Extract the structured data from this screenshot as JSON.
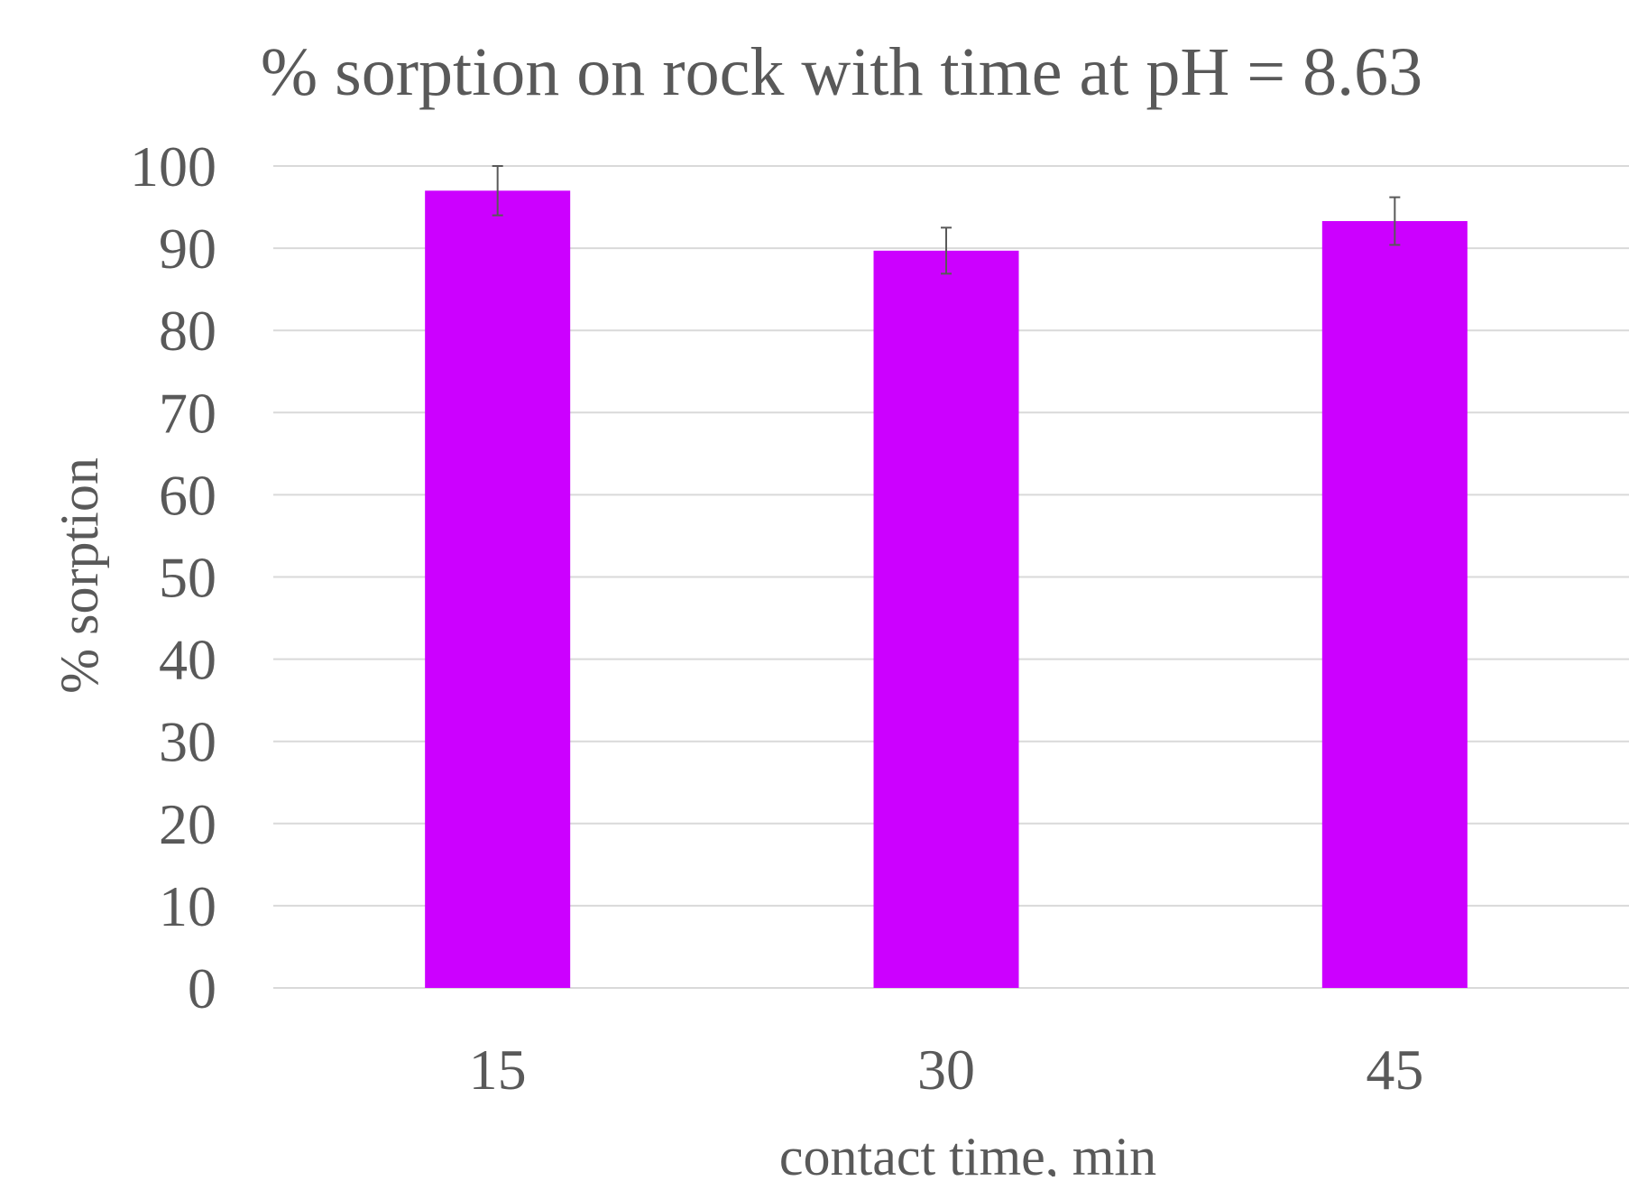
{
  "chart_data": {
    "type": "bar",
    "title": "% sorption on rock with time at pH = 8.63",
    "xlabel": "contact time, min",
    "ylabel": "% sorption",
    "categories": [
      "15",
      "30",
      "45"
    ],
    "series": [
      {
        "values": [
          97,
          89.7,
          93.3
        ],
        "error": [
          3,
          2.8,
          2.9
        ],
        "color": "#cc00ff"
      }
    ],
    "ylim": [
      0,
      100
    ],
    "yticks": [
      0,
      10,
      20,
      30,
      40,
      50,
      60,
      70,
      80,
      90,
      100
    ],
    "grid": true
  },
  "colors": {
    "bar": "#cc00ff",
    "text": "#595959",
    "grid": "#d9d9d9",
    "errorbar": "#595959"
  }
}
